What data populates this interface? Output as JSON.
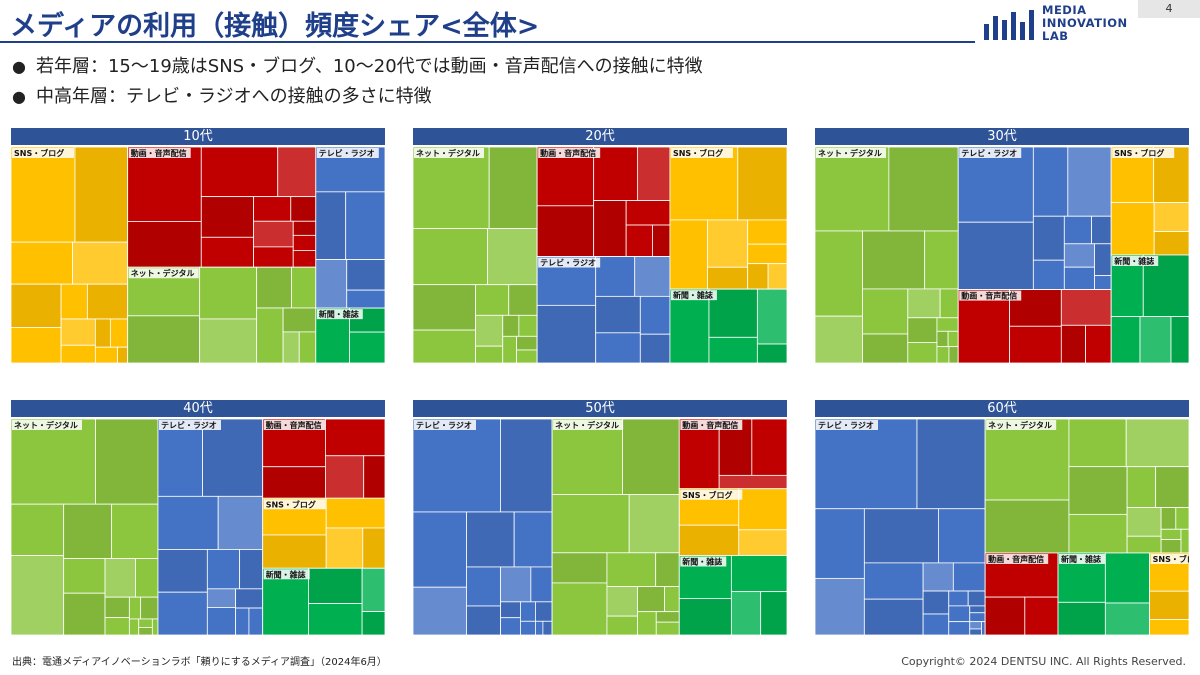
{
  "header": {
    "title": "メディアの利用（接触）頻度シェア<全体>",
    "page_number": "4",
    "logo_lines": [
      "MEDIA",
      "INNOVATION",
      "LAB"
    ]
  },
  "bullets": [
    "若年層：15〜19歳はSNS・ブログ、10〜20代では動画・音声配信への接触に特徴",
    "中高年層：テレビ・ラジオへの接触の多さに特徴"
  ],
  "colors": {
    "ネット・デジタル": "#8cc63f",
    "SNS・ブログ": "#ffc000",
    "動画・音声配信": "#c00000",
    "テレビ・ラジオ": "#4472c4",
    "新聞・雑誌": "#00b050"
  },
  "chart_data": [
    {
      "type": "treemap",
      "title": "10代",
      "categories": [
        "SNS・ブログ",
        "動画・音声配信",
        "ネット・デジタル",
        "テレビ・ラジオ",
        "新聞・雑誌"
      ],
      "values": [
        31.2,
        28.0,
        22.3,
        13.8,
        4.7
      ]
    },
    {
      "type": "treemap",
      "title": "20代",
      "categories": [
        "ネット・デジタル",
        "動画・音声配信",
        "テレビ・ラジオ",
        "SNS・ブログ",
        "新聞・雑誌"
      ],
      "values": [
        33.2,
        18.0,
        17.5,
        20.6,
        10.7
      ]
    },
    {
      "type": "treemap",
      "title": "30代",
      "categories": [
        "ネット・デジタル",
        "テレビ・ラジオ",
        "動画・音声配信",
        "SNS・ブログ",
        "新聞・雑誌"
      ],
      "values": [
        38.3,
        27.0,
        13.9,
        10.4,
        10.4
      ]
    },
    {
      "type": "treemap",
      "title": "40代",
      "categories": [
        "ネット・デジタル",
        "テレビ・ラジオ",
        "動画・音声配信",
        "SNS・ブログ",
        "新聞・雑誌"
      ],
      "values": [
        39.3,
        28.0,
        12.0,
        10.6,
        10.1
      ]
    },
    {
      "type": "treemap",
      "title": "50代",
      "categories": [
        "テレビ・ラジオ",
        "ネット・デジタル",
        "動画・音声配信",
        "SNS・ブログ",
        "新聞・雑誌"
      ],
      "values": [
        37.2,
        34.0,
        9.3,
        8.9,
        10.6
      ]
    },
    {
      "type": "treemap",
      "title": "60代",
      "categories": [
        "テレビ・ラジオ",
        "ネット・デジタル",
        "動画・音声配信",
        "新聞・雑誌",
        "SNS・ブログ"
      ],
      "values": [
        45.5,
        33.8,
        7.4,
        9.3,
        4.0
      ]
    }
  ],
  "footer": {
    "source": "出典：電通メディアイノベーションラボ「頼りにするメディア調査」（2024年6月）",
    "copyright": "Copyright© 2024 DENTSU INC. All Rights Reserved."
  }
}
